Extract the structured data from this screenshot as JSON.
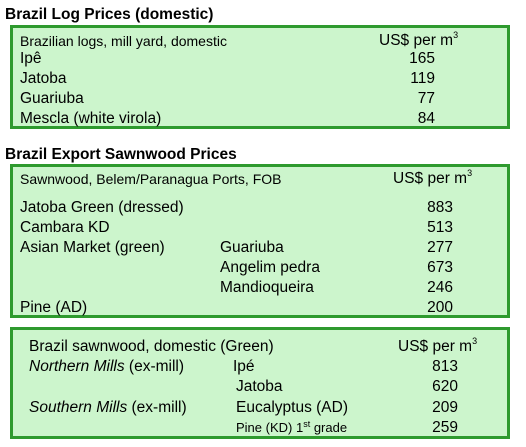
{
  "log_prices": {
    "title": "Brazil Log Prices (domestic)",
    "header_label": "Brazilian logs, mill yard, domestic",
    "unit": "US$ per m",
    "unit_sup": "3",
    "rows": [
      {
        "name": "Ipê",
        "value": "165"
      },
      {
        "name": "Jatoba",
        "value": "119"
      },
      {
        "name": "Guariuba",
        "value": "77"
      },
      {
        "name": "Mescla (white virola)",
        "value": "84"
      }
    ]
  },
  "export_sawnwood": {
    "title": "Brazil Export Sawnwood Prices",
    "header_label": "Sawnwood, Belem/Paranagua Ports, FOB",
    "unit": "US$ per m",
    "unit_sup": "3",
    "rows": [
      {
        "name": "Jatoba Green (dressed)",
        "sub": "",
        "value": "883"
      },
      {
        "name": "Cambara KD",
        "sub": "",
        "value": "513"
      },
      {
        "name": "Asian Market (green)",
        "sub": "Guariuba",
        "value": "277"
      },
      {
        "name": "",
        "sub": "Angelim pedra",
        "value": "673"
      },
      {
        "name": "",
        "sub": "Mandioqueira",
        "value": "246"
      },
      {
        "name": "Pine (AD)",
        "sub": "",
        "value": "200"
      }
    ]
  },
  "domestic_sawnwood": {
    "header_label": "Brazil sawnwood, domestic (Green)",
    "unit": "US$ per m",
    "unit_sup": "3",
    "rows": [
      {
        "mill_italic": "Northern Mills",
        "mill_rest": " (ex-mill)",
        "species": "Ipé",
        "value": "813"
      },
      {
        "mill_italic": "",
        "mill_rest": "",
        "species": "Jatoba",
        "value": "620"
      },
      {
        "mill_italic": "Southern Mills",
        "mill_rest": " (ex-mill)",
        "species": "Eucalyptus (AD)",
        "value": "209"
      },
      {
        "mill_italic": "",
        "mill_rest": "",
        "species_main": "Pine (KD) 1",
        "species_sup": "st",
        "species_tail": " grade",
        "value": "259"
      }
    ]
  },
  "colors": {
    "box_fill": "#ccf5cc",
    "box_border": "#2e9a2e"
  }
}
